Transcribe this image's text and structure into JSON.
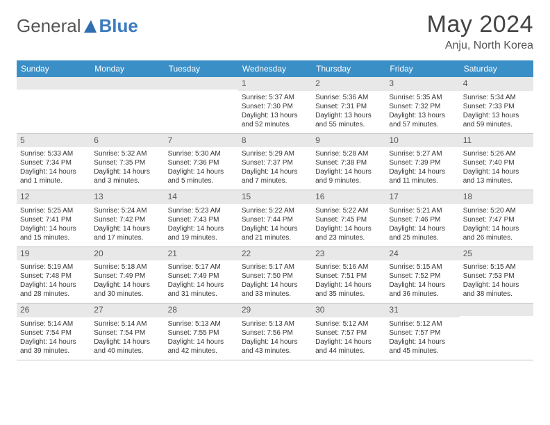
{
  "brand": {
    "part1": "General",
    "part2": "Blue"
  },
  "title": "May 2024",
  "location": "Anju, North Korea",
  "day_headers": [
    "Sunday",
    "Monday",
    "Tuesday",
    "Wednesday",
    "Thursday",
    "Friday",
    "Saturday"
  ],
  "colors": {
    "header_bg": "#3b8fc7",
    "header_text": "#ffffff",
    "daynum_bg": "#e8e8e8",
    "border": "#c0c0c0",
    "brand_blue": "#3b7bbf"
  },
  "weeks": [
    [
      {
        "day": "",
        "sunrise": "",
        "sunset": "",
        "daylight1": "",
        "daylight2": ""
      },
      {
        "day": "",
        "sunrise": "",
        "sunset": "",
        "daylight1": "",
        "daylight2": ""
      },
      {
        "day": "",
        "sunrise": "",
        "sunset": "",
        "daylight1": "",
        "daylight2": ""
      },
      {
        "day": "1",
        "sunrise": "Sunrise: 5:37 AM",
        "sunset": "Sunset: 7:30 PM",
        "daylight1": "Daylight: 13 hours",
        "daylight2": "and 52 minutes."
      },
      {
        "day": "2",
        "sunrise": "Sunrise: 5:36 AM",
        "sunset": "Sunset: 7:31 PM",
        "daylight1": "Daylight: 13 hours",
        "daylight2": "and 55 minutes."
      },
      {
        "day": "3",
        "sunrise": "Sunrise: 5:35 AM",
        "sunset": "Sunset: 7:32 PM",
        "daylight1": "Daylight: 13 hours",
        "daylight2": "and 57 minutes."
      },
      {
        "day": "4",
        "sunrise": "Sunrise: 5:34 AM",
        "sunset": "Sunset: 7:33 PM",
        "daylight1": "Daylight: 13 hours",
        "daylight2": "and 59 minutes."
      }
    ],
    [
      {
        "day": "5",
        "sunrise": "Sunrise: 5:33 AM",
        "sunset": "Sunset: 7:34 PM",
        "daylight1": "Daylight: 14 hours",
        "daylight2": "and 1 minute."
      },
      {
        "day": "6",
        "sunrise": "Sunrise: 5:32 AM",
        "sunset": "Sunset: 7:35 PM",
        "daylight1": "Daylight: 14 hours",
        "daylight2": "and 3 minutes."
      },
      {
        "day": "7",
        "sunrise": "Sunrise: 5:30 AM",
        "sunset": "Sunset: 7:36 PM",
        "daylight1": "Daylight: 14 hours",
        "daylight2": "and 5 minutes."
      },
      {
        "day": "8",
        "sunrise": "Sunrise: 5:29 AM",
        "sunset": "Sunset: 7:37 PM",
        "daylight1": "Daylight: 14 hours",
        "daylight2": "and 7 minutes."
      },
      {
        "day": "9",
        "sunrise": "Sunrise: 5:28 AM",
        "sunset": "Sunset: 7:38 PM",
        "daylight1": "Daylight: 14 hours",
        "daylight2": "and 9 minutes."
      },
      {
        "day": "10",
        "sunrise": "Sunrise: 5:27 AM",
        "sunset": "Sunset: 7:39 PM",
        "daylight1": "Daylight: 14 hours",
        "daylight2": "and 11 minutes."
      },
      {
        "day": "11",
        "sunrise": "Sunrise: 5:26 AM",
        "sunset": "Sunset: 7:40 PM",
        "daylight1": "Daylight: 14 hours",
        "daylight2": "and 13 minutes."
      }
    ],
    [
      {
        "day": "12",
        "sunrise": "Sunrise: 5:25 AM",
        "sunset": "Sunset: 7:41 PM",
        "daylight1": "Daylight: 14 hours",
        "daylight2": "and 15 minutes."
      },
      {
        "day": "13",
        "sunrise": "Sunrise: 5:24 AM",
        "sunset": "Sunset: 7:42 PM",
        "daylight1": "Daylight: 14 hours",
        "daylight2": "and 17 minutes."
      },
      {
        "day": "14",
        "sunrise": "Sunrise: 5:23 AM",
        "sunset": "Sunset: 7:43 PM",
        "daylight1": "Daylight: 14 hours",
        "daylight2": "and 19 minutes."
      },
      {
        "day": "15",
        "sunrise": "Sunrise: 5:22 AM",
        "sunset": "Sunset: 7:44 PM",
        "daylight1": "Daylight: 14 hours",
        "daylight2": "and 21 minutes."
      },
      {
        "day": "16",
        "sunrise": "Sunrise: 5:22 AM",
        "sunset": "Sunset: 7:45 PM",
        "daylight1": "Daylight: 14 hours",
        "daylight2": "and 23 minutes."
      },
      {
        "day": "17",
        "sunrise": "Sunrise: 5:21 AM",
        "sunset": "Sunset: 7:46 PM",
        "daylight1": "Daylight: 14 hours",
        "daylight2": "and 25 minutes."
      },
      {
        "day": "18",
        "sunrise": "Sunrise: 5:20 AM",
        "sunset": "Sunset: 7:47 PM",
        "daylight1": "Daylight: 14 hours",
        "daylight2": "and 26 minutes."
      }
    ],
    [
      {
        "day": "19",
        "sunrise": "Sunrise: 5:19 AM",
        "sunset": "Sunset: 7:48 PM",
        "daylight1": "Daylight: 14 hours",
        "daylight2": "and 28 minutes."
      },
      {
        "day": "20",
        "sunrise": "Sunrise: 5:18 AM",
        "sunset": "Sunset: 7:49 PM",
        "daylight1": "Daylight: 14 hours",
        "daylight2": "and 30 minutes."
      },
      {
        "day": "21",
        "sunrise": "Sunrise: 5:17 AM",
        "sunset": "Sunset: 7:49 PM",
        "daylight1": "Daylight: 14 hours",
        "daylight2": "and 31 minutes."
      },
      {
        "day": "22",
        "sunrise": "Sunrise: 5:17 AM",
        "sunset": "Sunset: 7:50 PM",
        "daylight1": "Daylight: 14 hours",
        "daylight2": "and 33 minutes."
      },
      {
        "day": "23",
        "sunrise": "Sunrise: 5:16 AM",
        "sunset": "Sunset: 7:51 PM",
        "daylight1": "Daylight: 14 hours",
        "daylight2": "and 35 minutes."
      },
      {
        "day": "24",
        "sunrise": "Sunrise: 5:15 AM",
        "sunset": "Sunset: 7:52 PM",
        "daylight1": "Daylight: 14 hours",
        "daylight2": "and 36 minutes."
      },
      {
        "day": "25",
        "sunrise": "Sunrise: 5:15 AM",
        "sunset": "Sunset: 7:53 PM",
        "daylight1": "Daylight: 14 hours",
        "daylight2": "and 38 minutes."
      }
    ],
    [
      {
        "day": "26",
        "sunrise": "Sunrise: 5:14 AM",
        "sunset": "Sunset: 7:54 PM",
        "daylight1": "Daylight: 14 hours",
        "daylight2": "and 39 minutes."
      },
      {
        "day": "27",
        "sunrise": "Sunrise: 5:14 AM",
        "sunset": "Sunset: 7:54 PM",
        "daylight1": "Daylight: 14 hours",
        "daylight2": "and 40 minutes."
      },
      {
        "day": "28",
        "sunrise": "Sunrise: 5:13 AM",
        "sunset": "Sunset: 7:55 PM",
        "daylight1": "Daylight: 14 hours",
        "daylight2": "and 42 minutes."
      },
      {
        "day": "29",
        "sunrise": "Sunrise: 5:13 AM",
        "sunset": "Sunset: 7:56 PM",
        "daylight1": "Daylight: 14 hours",
        "daylight2": "and 43 minutes."
      },
      {
        "day": "30",
        "sunrise": "Sunrise: 5:12 AM",
        "sunset": "Sunset: 7:57 PM",
        "daylight1": "Daylight: 14 hours",
        "daylight2": "and 44 minutes."
      },
      {
        "day": "31",
        "sunrise": "Sunrise: 5:12 AM",
        "sunset": "Sunset: 7:57 PM",
        "daylight1": "Daylight: 14 hours",
        "daylight2": "and 45 minutes."
      },
      {
        "day": "",
        "sunrise": "",
        "sunset": "",
        "daylight1": "",
        "daylight2": ""
      }
    ]
  ]
}
